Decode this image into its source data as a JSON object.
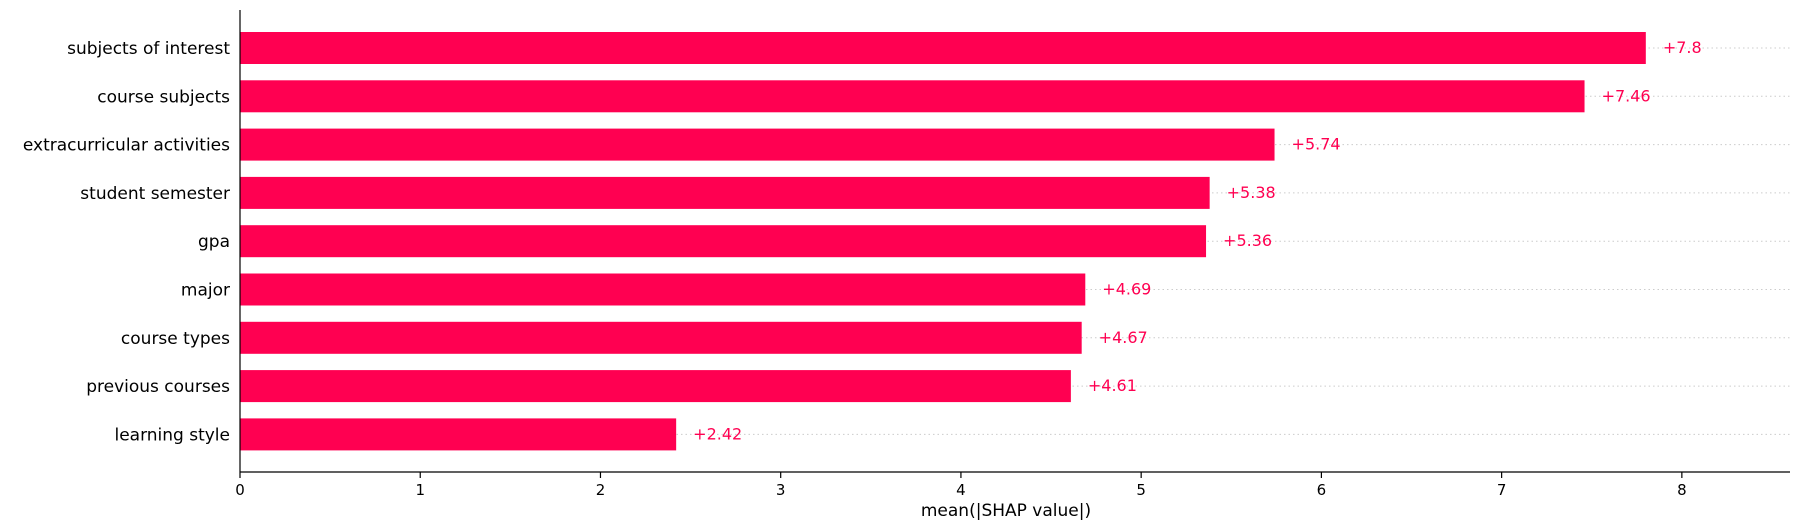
{
  "chart_data": {
    "type": "bar",
    "orientation": "horizontal",
    "categories": [
      "subjects of interest",
      "course subjects",
      "extracurricular activities",
      "student semester",
      "gpa",
      "major",
      "course types",
      "previous courses",
      "learning style"
    ],
    "values": [
      7.8,
      7.46,
      5.74,
      5.38,
      5.36,
      4.69,
      4.67,
      4.61,
      2.42
    ],
    "data_labels": [
      "+7.8",
      "+7.46",
      "+5.74",
      "+5.38",
      "+5.36",
      "+4.69",
      "+4.67",
      "+4.61",
      "+2.42"
    ],
    "xlabel": "mean(|SHAP value|)",
    "ylabel": "",
    "xlim": [
      0,
      8.6
    ],
    "xticks": [
      0,
      1,
      2,
      3,
      4,
      5,
      6,
      7,
      8
    ],
    "grid": "dotted horizontal guides per row",
    "bar_color": "#ff0051",
    "label_color": "#ff0051",
    "guide_color": "#cccccc",
    "axis_color": "#000000"
  }
}
